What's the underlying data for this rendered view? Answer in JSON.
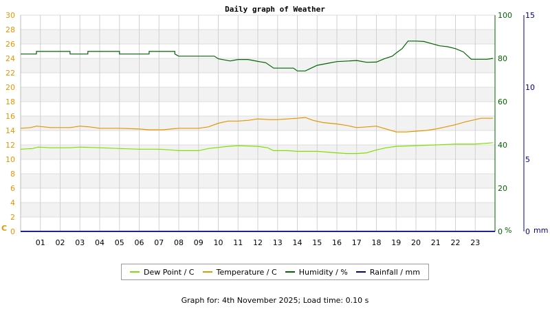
{
  "chart_data": {
    "type": "line",
    "title": "Daily graph of Weather",
    "x": {
      "ticks": [
        "01",
        "02",
        "03",
        "04",
        "05",
        "06",
        "07",
        "08",
        "09",
        "10",
        "11",
        "12",
        "13",
        "14",
        "15",
        "16",
        "17",
        "18",
        "19",
        "20",
        "21",
        "22",
        "23"
      ],
      "range": [
        0,
        24
      ]
    },
    "y_left": {
      "unit": "C",
      "ticks": [
        "0",
        "2",
        "4",
        "6",
        "8",
        "10",
        "12",
        "14",
        "16",
        "18",
        "20",
        "22",
        "24",
        "26",
        "28",
        "30"
      ],
      "range": [
        0,
        30
      ],
      "color": "#e69500"
    },
    "y_right1": {
      "unit": "%",
      "ticks": [
        "0",
        "20",
        "40",
        "60",
        "80",
        "100"
      ],
      "range": [
        0,
        100
      ],
      "color": "#006400"
    },
    "y_right2": {
      "unit": "mm",
      "ticks": [
        "0",
        "5",
        "10",
        "15"
      ],
      "range": [
        0,
        15
      ],
      "color": "#00008b"
    },
    "grid": true,
    "series": [
      {
        "name": "Dew Point / C",
        "axis": "left",
        "color": "#7fe000",
        "points": [
          [
            0,
            11.4
          ],
          [
            0.6,
            11.5
          ],
          [
            0.9,
            11.7
          ],
          [
            1.5,
            11.6
          ],
          [
            2.5,
            11.6
          ],
          [
            3,
            11.7
          ],
          [
            4,
            11.6
          ],
          [
            5,
            11.5
          ],
          [
            6,
            11.4
          ],
          [
            7,
            11.4
          ],
          [
            7.6,
            11.3
          ],
          [
            8,
            11.2
          ],
          [
            9,
            11.2
          ],
          [
            9.5,
            11.5
          ],
          [
            10.5,
            11.8
          ],
          [
            11,
            11.9
          ],
          [
            12,
            11.8
          ],
          [
            12.5,
            11.6
          ],
          [
            12.8,
            11.2
          ],
          [
            13.5,
            11.2
          ],
          [
            14,
            11.1
          ],
          [
            15,
            11.1
          ],
          [
            16,
            10.9
          ],
          [
            16.5,
            10.8
          ],
          [
            17,
            10.8
          ],
          [
            17.5,
            10.9
          ],
          [
            18,
            11.3
          ],
          [
            18.5,
            11.6
          ],
          [
            19,
            11.8
          ],
          [
            20,
            11.9
          ],
          [
            21,
            12.0
          ],
          [
            22,
            12.1
          ],
          [
            23,
            12.1
          ],
          [
            23.9,
            12.3
          ]
        ]
      },
      {
        "name": "Temperature / C",
        "axis": "left",
        "color": "#e69500",
        "points": [
          [
            0,
            14.3
          ],
          [
            0.5,
            14.4
          ],
          [
            0.8,
            14.6
          ],
          [
            1.2,
            14.5
          ],
          [
            1.5,
            14.4
          ],
          [
            2.5,
            14.4
          ],
          [
            3,
            14.6
          ],
          [
            3.5,
            14.5
          ],
          [
            4,
            14.3
          ],
          [
            5,
            14.3
          ],
          [
            6,
            14.2
          ],
          [
            6.5,
            14.1
          ],
          [
            7.2,
            14.1
          ],
          [
            8,
            14.3
          ],
          [
            9,
            14.3
          ],
          [
            9.5,
            14.5
          ],
          [
            10,
            15.0
          ],
          [
            10.5,
            15.3
          ],
          [
            11,
            15.3
          ],
          [
            11.5,
            15.4
          ],
          [
            12,
            15.6
          ],
          [
            12.6,
            15.5
          ],
          [
            13,
            15.5
          ],
          [
            13.5,
            15.6
          ],
          [
            14,
            15.7
          ],
          [
            14.4,
            15.8
          ],
          [
            14.8,
            15.4
          ],
          [
            15.3,
            15.1
          ],
          [
            16,
            14.9
          ],
          [
            16.5,
            14.7
          ],
          [
            17,
            14.4
          ],
          [
            17.5,
            14.5
          ],
          [
            18,
            14.6
          ],
          [
            18.5,
            14.2
          ],
          [
            19,
            13.8
          ],
          [
            19.5,
            13.8
          ],
          [
            20,
            13.9
          ],
          [
            20.5,
            14.0
          ],
          [
            21,
            14.2
          ],
          [
            21.5,
            14.5
          ],
          [
            22,
            14.8
          ],
          [
            22.5,
            15.2
          ],
          [
            23,
            15.5
          ],
          [
            23.3,
            15.7
          ],
          [
            23.9,
            15.7
          ]
        ]
      },
      {
        "name": "Humidity / %",
        "axis": "right1",
        "color": "#006400",
        "points": [
          [
            0,
            82.0
          ],
          [
            0.8,
            82.0
          ],
          [
            0.8,
            83.2
          ],
          [
            2.5,
            83.2
          ],
          [
            2.5,
            82.0
          ],
          [
            3.4,
            82.0
          ],
          [
            3.4,
            83.2
          ],
          [
            5,
            83.2
          ],
          [
            5,
            82.0
          ],
          [
            6.5,
            82.0
          ],
          [
            6.5,
            83.2
          ],
          [
            7.8,
            83.2
          ],
          [
            7.8,
            82.0
          ],
          [
            8,
            81.0
          ],
          [
            9.8,
            81.0
          ],
          [
            10,
            79.8
          ],
          [
            10.6,
            78.8
          ],
          [
            11,
            79.5
          ],
          [
            11.5,
            79.5
          ],
          [
            12,
            78.6
          ],
          [
            12.4,
            78.0
          ],
          [
            12.8,
            75.5
          ],
          [
            13.4,
            75.5
          ],
          [
            13.8,
            75.5
          ],
          [
            14,
            74.2
          ],
          [
            14.4,
            74.2
          ],
          [
            14.7,
            75.5
          ],
          [
            15,
            76.8
          ],
          [
            15.6,
            77.8
          ],
          [
            16,
            78.5
          ],
          [
            16.6,
            78.8
          ],
          [
            17,
            79.0
          ],
          [
            17.5,
            78.2
          ],
          [
            18,
            78.3
          ],
          [
            18.4,
            79.8
          ],
          [
            18.8,
            81.0
          ],
          [
            19,
            82.5
          ],
          [
            19.3,
            84.5
          ],
          [
            19.6,
            88.0
          ],
          [
            20,
            88.0
          ],
          [
            20.4,
            87.8
          ],
          [
            20.8,
            86.8
          ],
          [
            21.2,
            85.8
          ],
          [
            21.6,
            85.4
          ],
          [
            22,
            84.5
          ],
          [
            22.4,
            83.0
          ],
          [
            22.8,
            79.6
          ],
          [
            23.2,
            79.6
          ],
          [
            23.6,
            79.6
          ],
          [
            23.9,
            80.0
          ]
        ]
      },
      {
        "name": "Rainfall / mm",
        "axis": "right2",
        "color": "#00008b",
        "points": [
          [
            0,
            0
          ],
          [
            24,
            0
          ]
        ]
      }
    ],
    "legend_position": "bottom"
  },
  "legend": {
    "dew_point": {
      "label": "Dew Point / C",
      "color": "#7fe000"
    },
    "temperature": {
      "label": "Temperature / C",
      "color": "#e69500"
    },
    "humidity": {
      "label": "Humidity / %",
      "color": "#006400"
    },
    "rainfall": {
      "label": "Rainfall / mm",
      "color": "#00008b"
    }
  },
  "footer": "Graph for: 4th November 2025; Load time: 0.10 s"
}
